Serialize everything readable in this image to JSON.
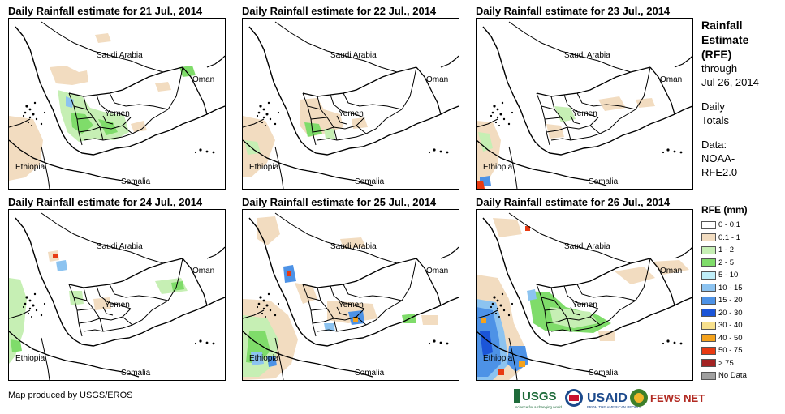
{
  "panels": [
    {
      "title": "Daily Rainfall estimate for 21 Jul., 2014",
      "rain": "p1"
    },
    {
      "title": "Daily Rainfall estimate for 22 Jul., 2014",
      "rain": "p2"
    },
    {
      "title": "Daily Rainfall estimate for 23 Jul., 2014",
      "rain": "p3"
    },
    {
      "title": "Daily Rainfall estimate for 24 Jul., 2014",
      "rain": "p4"
    },
    {
      "title": "Daily Rainfall estimate for 25 Jul., 2014",
      "rain": "p5"
    },
    {
      "title": "Daily Rainfall estimate for 26 Jul., 2014",
      "rain": "p6"
    }
  ],
  "map_labels": {
    "saudi": "Saudi Arabia",
    "oman": "Oman",
    "yemen": "Yemen",
    "ethiopia": "Ethiopia",
    "somalia": "Somalia"
  },
  "sidebar": {
    "line1": "Rainfall",
    "line2": "Estimate",
    "line3": "(RFE)",
    "line4": "through",
    "line5": "Jul 26, 2014",
    "totals1": "Daily",
    "totals2": "Totals",
    "data1": "Data:",
    "data2": "NOAA-",
    "data3": "RFE2.0"
  },
  "legend": {
    "title": "RFE (mm)",
    "items": [
      {
        "label": "0 - 0.1",
        "color": "#ffffff"
      },
      {
        "label": "0.1 - 1",
        "color": "#f2dcc0"
      },
      {
        "label": "1 - 2",
        "color": "#c6efb4"
      },
      {
        "label": "2 - 5",
        "color": "#7fdc6a"
      },
      {
        "label": "5 - 10",
        "color": "#bfeef8"
      },
      {
        "label": "10 - 15",
        "color": "#8cc3f0"
      },
      {
        "label": "15 - 20",
        "color": "#4d92e6"
      },
      {
        "label": "20 - 30",
        "color": "#1b55d8"
      },
      {
        "label": "30 - 40",
        "color": "#f7e08c"
      },
      {
        "label": "40 - 50",
        "color": "#f4a21c"
      },
      {
        "label": "50 - 75",
        "color": "#e83a12"
      },
      {
        "label": "> 75",
        "color": "#a32323"
      },
      {
        "label": "No Data",
        "color": "#a0a0a0"
      }
    ]
  },
  "credit": "Map produced by USGS/EROS",
  "logos": {
    "usgs": "USGS",
    "usgs_tagline": "science for a changing world",
    "usaid": "USAID",
    "usaid_tagline": "FROM THE AMERICAN PEOPLE",
    "fewsnet": "FEWS NET"
  }
}
